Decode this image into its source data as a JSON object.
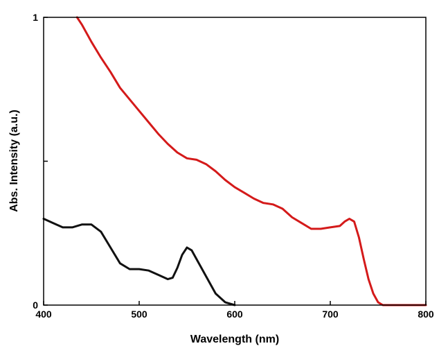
{
  "chart_data": {
    "type": "line",
    "title": "",
    "xlabel": "Wavelength (nm)",
    "ylabel": "Abs. Intensity (a.u.)",
    "xlim": [
      400,
      800
    ],
    "ylim": [
      0,
      1
    ],
    "grid": false,
    "legend": "none",
    "x_ticks": [
      400,
      500,
      600,
      700,
      800
    ],
    "y_ticks": [
      0,
      0.5,
      1
    ],
    "y_tick_labels": [
      "0",
      "",
      "1"
    ],
    "series": [
      {
        "color": "#d41a1a",
        "points": [
          [
            435,
            1.0
          ],
          [
            440,
            0.975
          ],
          [
            450,
            0.915
          ],
          [
            460,
            0.86
          ],
          [
            470,
            0.81
          ],
          [
            480,
            0.755
          ],
          [
            490,
            0.715
          ],
          [
            500,
            0.675
          ],
          [
            510,
            0.635
          ],
          [
            520,
            0.595
          ],
          [
            530,
            0.56
          ],
          [
            540,
            0.53
          ],
          [
            550,
            0.51
          ],
          [
            560,
            0.505
          ],
          [
            570,
            0.49
          ],
          [
            580,
            0.465
          ],
          [
            590,
            0.435
          ],
          [
            600,
            0.41
          ],
          [
            610,
            0.39
          ],
          [
            620,
            0.37
          ],
          [
            630,
            0.355
          ],
          [
            640,
            0.35
          ],
          [
            650,
            0.335
          ],
          [
            660,
            0.305
          ],
          [
            670,
            0.285
          ],
          [
            680,
            0.265
          ],
          [
            690,
            0.265
          ],
          [
            700,
            0.27
          ],
          [
            710,
            0.275
          ],
          [
            715,
            0.29
          ],
          [
            720,
            0.3
          ],
          [
            725,
            0.29
          ],
          [
            730,
            0.235
          ],
          [
            735,
            0.16
          ],
          [
            740,
            0.09
          ],
          [
            745,
            0.04
          ],
          [
            750,
            0.01
          ],
          [
            755,
            0.0
          ],
          [
            800,
            0.0
          ]
        ]
      },
      {
        "color": "#111111",
        "points": [
          [
            400,
            0.3
          ],
          [
            410,
            0.285
          ],
          [
            420,
            0.27
          ],
          [
            430,
            0.27
          ],
          [
            440,
            0.28
          ],
          [
            450,
            0.28
          ],
          [
            460,
            0.255
          ],
          [
            470,
            0.2
          ],
          [
            480,
            0.145
          ],
          [
            490,
            0.125
          ],
          [
            500,
            0.125
          ],
          [
            510,
            0.12
          ],
          [
            520,
            0.105
          ],
          [
            530,
            0.09
          ],
          [
            535,
            0.095
          ],
          [
            540,
            0.13
          ],
          [
            545,
            0.175
          ],
          [
            550,
            0.2
          ],
          [
            555,
            0.19
          ],
          [
            560,
            0.16
          ],
          [
            570,
            0.1
          ],
          [
            580,
            0.04
          ],
          [
            590,
            0.01
          ],
          [
            600,
            0.0
          ]
        ]
      }
    ]
  }
}
